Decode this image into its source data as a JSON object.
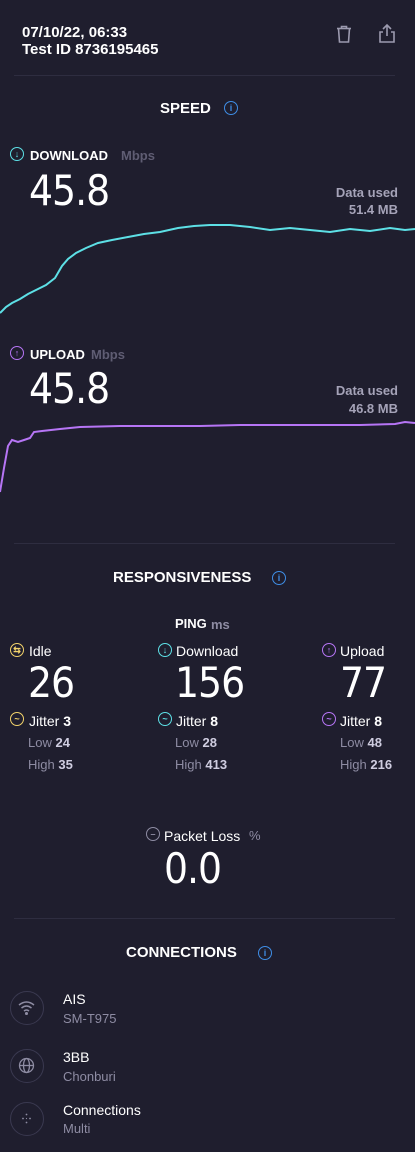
{
  "header": {
    "datetime": "07/10/22, 06:33",
    "test_id": "Test ID 8736195465",
    "trash_icon": "trash-icon",
    "share_icon": "share-icon"
  },
  "speed": {
    "title": "SPEED",
    "download": {
      "label": "DOWNLOAD",
      "unit": "Mbps",
      "value": "45.8",
      "data_used_label": "Data used",
      "data_used_value": "51.4 MB",
      "color": "#5de0e6",
      "curve": [
        0.5,
        0.56,
        0.62,
        0.68,
        0.85,
        0.97,
        1.0,
        1.02,
        1.0,
        1.01,
        1.0,
        1.0
      ]
    },
    "upload": {
      "label": "UPLOAD",
      "unit": "Mbps",
      "value": "45.8",
      "data_used_label": "Data used",
      "data_used_value": "46.8 MB",
      "color": "#b675f5",
      "curve": [
        0.2,
        0.9,
        0.95,
        0.98,
        0.99,
        1.0,
        1.0,
        1.0,
        1.01,
        1.0,
        1.0,
        1.0
      ]
    }
  },
  "responsiveness": {
    "title": "RESPONSIVENESS",
    "ping_label": "PING",
    "ping_unit": "ms",
    "idle": {
      "label": "Idle",
      "value": "26",
      "jitter_label": "Jitter",
      "jitter": "3",
      "low_label": "Low",
      "low": "24",
      "high_label": "High",
      "high": "35",
      "color": "#f2d36b"
    },
    "download": {
      "label": "Download",
      "value": "156",
      "jitter_label": "Jitter",
      "jitter": "8",
      "low_label": "Low",
      "low": "28",
      "high_label": "High",
      "high": "413",
      "color": "#5de0e6"
    },
    "upload": {
      "label": "Upload",
      "value": "77",
      "jitter_label": "Jitter",
      "jitter": "8",
      "low_label": "Low",
      "low": "48",
      "high_label": "High",
      "high": "216",
      "color": "#b675f5"
    },
    "packet_loss": {
      "label": "Packet Loss",
      "unit": "%",
      "value": "0.0"
    }
  },
  "connections": {
    "title": "CONNECTIONS",
    "items": [
      {
        "title": "AIS",
        "subtitle": "SM-T975",
        "icon": "wifi-icon"
      },
      {
        "title": "3BB",
        "subtitle": "Chonburi",
        "icon": "globe-icon"
      },
      {
        "title": "Connections",
        "subtitle": "Multi",
        "icon": "connections-icon"
      }
    ]
  }
}
